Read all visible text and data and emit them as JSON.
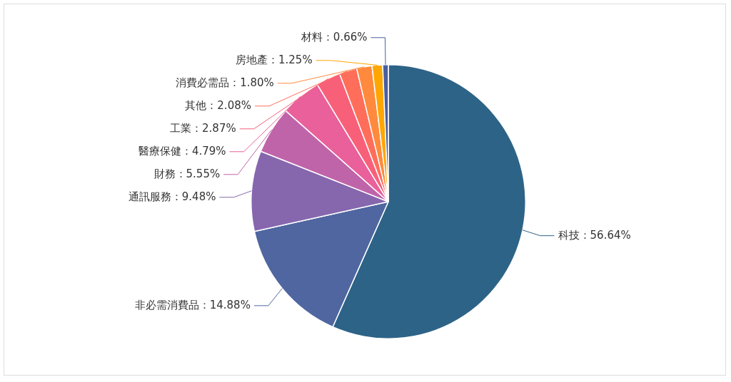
{
  "chart_data": {
    "type": "pie",
    "categories": [
      "科技",
      "非必需消費品",
      "通訊服務",
      "財務",
      "醫療保健",
      "工業",
      "其他",
      "消費必需品",
      "房地產",
      "材料"
    ],
    "values": [
      56.64,
      14.88,
      9.48,
      5.55,
      4.79,
      2.87,
      2.08,
      1.8,
      1.25,
      0.66
    ],
    "colors": [
      "#2d6387",
      "#4f66a0",
      "#8667ae",
      "#c064aa",
      "#e9609a",
      "#f8607a",
      "#ff6e5a",
      "#ff8a3d",
      "#ffa600",
      "#4a5fa0"
    ],
    "value_labels": [
      "：56.64%",
      "：14.88%",
      "：9.48%",
      "：5.55%",
      "：4.79%",
      "：2.87%",
      "：2.08%",
      "：1.80%",
      "：1.25%",
      "：0.66%"
    ],
    "legend": false
  }
}
